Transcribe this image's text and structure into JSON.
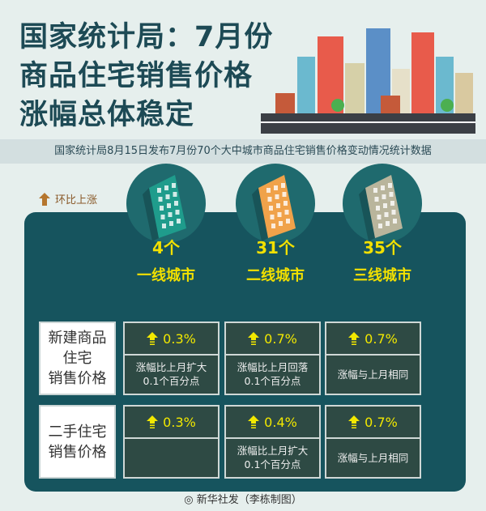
{
  "title": [
    "国家统计局：7月份",
    "商品住宅销售价格",
    "涨幅总体稳定"
  ],
  "banner": "国家统计局8月15日发布7月份70个大中城市商品住宅销售价格变动情况统计数据",
  "legend": "环比上涨",
  "tiers": [
    {
      "count": "4个",
      "name": "一线城市",
      "color": "#1f9c8c"
    },
    {
      "count": "31个",
      "name": "二线城市",
      "color": "#f0a24a"
    },
    {
      "count": "35个",
      "name": "三线城市",
      "color": "#b9b59c"
    }
  ],
  "rows": [
    {
      "label": "新建商品\n住宅\n销售价格",
      "cells": [
        {
          "value": "0.3%",
          "note": "涨幅比上月扩大\n0.1个百分点"
        },
        {
          "value": "0.7%",
          "note": "涨幅比上月回落\n0.1个百分点"
        },
        {
          "value": "0.7%",
          "note": "涨幅与上月相同"
        }
      ]
    },
    {
      "label": "二手住宅\n销售价格",
      "cells": [
        {
          "value": "0.3%",
          "note": ""
        },
        {
          "value": "0.4%",
          "note": "涨幅比上月扩大\n0.1个百分点"
        },
        {
          "value": "0.7%",
          "note": "涨幅与上月相同"
        }
      ]
    }
  ],
  "footer": "新华社发（李栋制图）"
}
